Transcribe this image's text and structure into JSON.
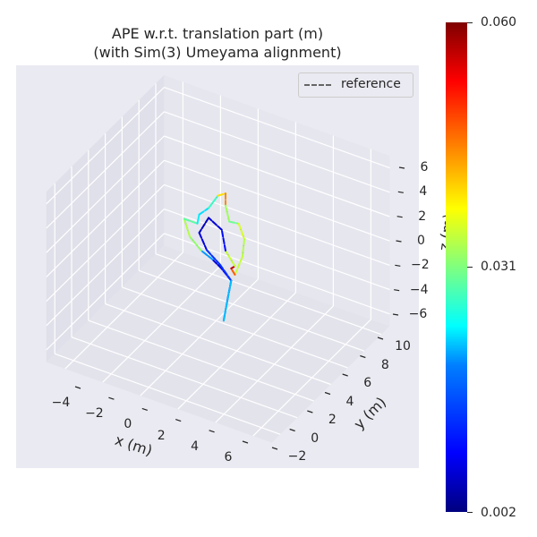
{
  "chart_data": {
    "type": "line3d",
    "title": "APE w.r.t. translation part (m)",
    "subtitle": "(with Sim(3) Umeyama alignment)",
    "xlabel": "x (m)",
    "ylabel": "y (m)",
    "zlabel": "z (m)",
    "xlim": [
      -5,
      7
    ],
    "ylim": [
      -3,
      11
    ],
    "zlim": [
      -7,
      7
    ],
    "x_ticks": [
      "−4",
      "−2",
      "0",
      "2",
      "4",
      "6"
    ],
    "y_ticks": [
      "−2",
      "0",
      "2",
      "4",
      "6",
      "8",
      "10"
    ],
    "z_ticks": [
      "6",
      "4",
      "2",
      "0",
      "−2",
      "−4",
      "−6"
    ],
    "grid": true,
    "legend": {
      "placement": "top-right",
      "entries": [
        "reference"
      ]
    },
    "reference_style": {
      "color": "#666666",
      "dash": "dashed"
    },
    "colormap": "jet",
    "colorbar": {
      "min": 0.002,
      "max": 0.06,
      "ticks": [
        "0.060",
        "0.031",
        "0.002"
      ]
    },
    "trajectory": [
      {
        "x": 1.3,
        "y": 4,
        "z": -4.9,
        "err": 0.022
      },
      {
        "x": 1.5,
        "y": 4,
        "z": -3.1,
        "err": 0.01
      },
      {
        "x": 1.7,
        "y": 4,
        "z": -1.4,
        "err": 0.012
      },
      {
        "x": 1.2,
        "y": 4,
        "z": -0.7,
        "err": 0.006
      },
      {
        "x": 0.7,
        "y": 4,
        "z": -0.2,
        "err": 0.008
      },
      {
        "x": 0.1,
        "y": 4,
        "z": 0.2,
        "err": 0.028
      },
      {
        "x": -0.5,
        "y": 4,
        "z": 1.0,
        "err": 0.036
      },
      {
        "x": -0.8,
        "y": 4,
        "z": 2.3,
        "err": 0.032
      },
      {
        "x": -0.1,
        "y": 4,
        "z": 2.3,
        "err": 0.026
      },
      {
        "x": 0.0,
        "y": 4,
        "z": 3.1,
        "err": 0.02
      },
      {
        "x": 0.5,
        "y": 4,
        "z": 3.9,
        "err": 0.024
      },
      {
        "x": 1.0,
        "y": 4,
        "z": 5.2,
        "err": 0.03
      },
      {
        "x": 1.4,
        "y": 4,
        "z": 5.6,
        "err": 0.05
      },
      {
        "x": 1.4,
        "y": 4,
        "z": 4.6,
        "err": 0.04
      },
      {
        "x": 1.6,
        "y": 4,
        "z": 3.4,
        "err": 0.026
      },
      {
        "x": 2.1,
        "y": 4,
        "z": 3.5,
        "err": 0.034
      },
      {
        "x": 2.4,
        "y": 4,
        "z": 2.4,
        "err": 0.038
      },
      {
        "x": 2.3,
        "y": 4,
        "z": 0.9,
        "err": 0.03
      },
      {
        "x": 1.9,
        "y": 4,
        "z": -0.8,
        "err": 0.04
      },
      {
        "x": 1.7,
        "y": 4,
        "z": -0.4,
        "err": 0.055
      },
      {
        "x": 1.9,
        "y": 4,
        "z": -0.1,
        "err": 0.058
      },
      {
        "x": 1.4,
        "y": 4,
        "z": 0.9,
        "err": 0.012
      },
      {
        "x": 1.2,
        "y": 4,
        "z": 2.5,
        "err": 0.008
      },
      {
        "x": 0.5,
        "y": 4,
        "z": 3.1,
        "err": 0.006
      },
      {
        "x": 0.0,
        "y": 4,
        "z": 1.6,
        "err": 0.005
      },
      {
        "x": 0.4,
        "y": 4,
        "z": 0.4,
        "err": 0.01
      },
      {
        "x": 1.1,
        "y": 4,
        "z": -0.4,
        "err": 0.014
      },
      {
        "x": 1.7,
        "y": 4,
        "z": -1.4,
        "err": 0.01
      },
      {
        "x": 1.3,
        "y": 4,
        "z": -4.9,
        "err": 0.03
      }
    ]
  }
}
